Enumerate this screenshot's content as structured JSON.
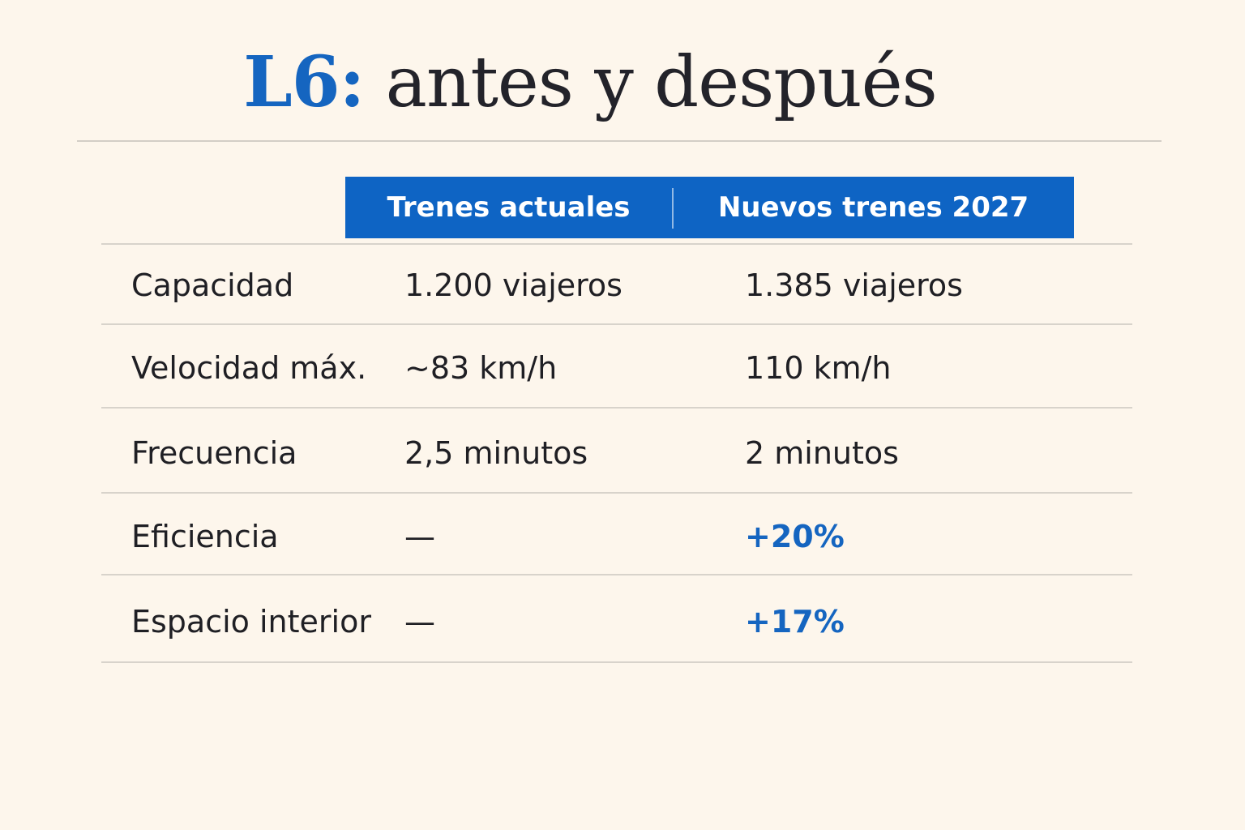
{
  "title": {
    "accent": "L6:",
    "rest": "antes y después"
  },
  "table": {
    "headers": [
      "Trenes actuales",
      "Nuevos trenes 2027"
    ],
    "rows": [
      {
        "label": "Capacidad",
        "current": "1.200 viajeros",
        "future": "1.385 viajeros"
      },
      {
        "label": "Velocidad máx.",
        "current": "~83 km/h",
        "future": "110 km/h"
      },
      {
        "label": "Frecuencia",
        "current": "2,5 minutos",
        "future": "2 minutos"
      },
      {
        "label": "Eficiencia",
        "current": "—",
        "future": "+20%"
      },
      {
        "label": "Espacio interior",
        "current": "—",
        "future": "+17%"
      }
    ]
  },
  "colors": {
    "accent": "#1565c0",
    "header_background": "#0e64c4",
    "page_background": "#fdf6ec"
  }
}
